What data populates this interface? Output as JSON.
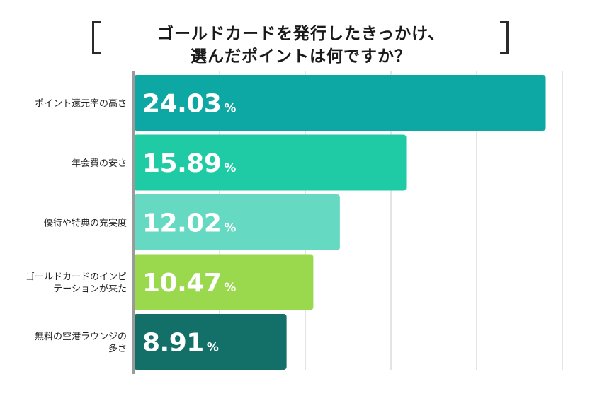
{
  "title": {
    "line1": "ゴールドカードを発行したきっかけ、",
    "line2": "選んだポイントは何ですか？"
  },
  "chart_data": {
    "type": "bar",
    "orientation": "horizontal",
    "categories": [
      "ポイント還元率の高さ",
      "年会費の安さ",
      "優待や特典の充実度",
      "ゴールドカードのインビテーションが来た",
      "無料の空港ラウンジの多さ"
    ],
    "category_lines": [
      [
        "ポイント還元率の高さ"
      ],
      [
        "年会費の安さ"
      ],
      [
        "優待や特典の充実度"
      ],
      [
        "ゴールドカードのインビ",
        "テーションが来た"
      ],
      [
        "無料の空港ラウンジの",
        "多さ"
      ]
    ],
    "values": [
      24.03,
      15.89,
      12.02,
      10.47,
      8.91
    ],
    "value_labels": [
      "24.03",
      "15.89",
      "12.02",
      "10.47",
      "8.91"
    ],
    "unit": "%",
    "xlim": [
      0,
      25
    ],
    "grid": true,
    "colors": [
      "#0ea8a4",
      "#1ecba5",
      "#66d9c2",
      "#9ad84e",
      "#137068"
    ],
    "axis_color": "#9a9a9a",
    "grid_color": "#d2d2d2"
  }
}
